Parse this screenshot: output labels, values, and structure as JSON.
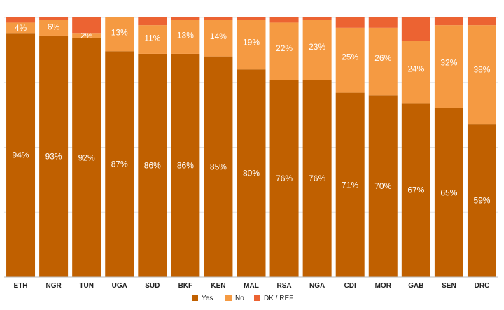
{
  "chart_data": {
    "type": "bar",
    "stacked": true,
    "title": "",
    "xlabel": "",
    "ylabel": "",
    "ylim": [
      0,
      100
    ],
    "grid": true,
    "legend_position": "bottom",
    "categories": [
      "ETH",
      "NGR",
      "TUN",
      "UGA",
      "SUD",
      "BKF",
      "KEN",
      "MAL",
      "RSA",
      "NGA",
      "CDI",
      "MOR",
      "GAB",
      "SEN",
      "DRC"
    ],
    "series": [
      {
        "name": "Yes",
        "color": "#c06000",
        "values": [
          94,
          93,
          92,
          87,
          86,
          86,
          85,
          80,
          76,
          76,
          71,
          70,
          67,
          65,
          59
        ]
      },
      {
        "name": "No",
        "color": "#f59a42",
        "values": [
          4,
          6,
          2,
          13,
          11,
          13,
          14,
          19,
          22,
          23,
          25,
          26,
          24,
          32,
          38
        ]
      },
      {
        "name": "DK / REF",
        "color": "#ec6332",
        "values": [
          2,
          1,
          6,
          0,
          3,
          1,
          1,
          1,
          2,
          1,
          4,
          4,
          9,
          3,
          3
        ]
      }
    ],
    "data_labels": {
      "Yes": [
        "94%",
        "93%",
        "92%",
        "87%",
        "86%",
        "86%",
        "85%",
        "80%",
        "76%",
        "76%",
        "71%",
        "70%",
        "67%",
        "65%",
        "59%"
      ],
      "No": [
        "4%",
        "6%",
        "2%",
        "13%",
        "11%",
        "13%",
        "14%",
        "19%",
        "22%",
        "23%",
        "25%",
        "26%",
        "24%",
        "32%",
        "38%"
      ]
    },
    "legend": [
      "Yes",
      "No",
      "DK / REF"
    ]
  }
}
